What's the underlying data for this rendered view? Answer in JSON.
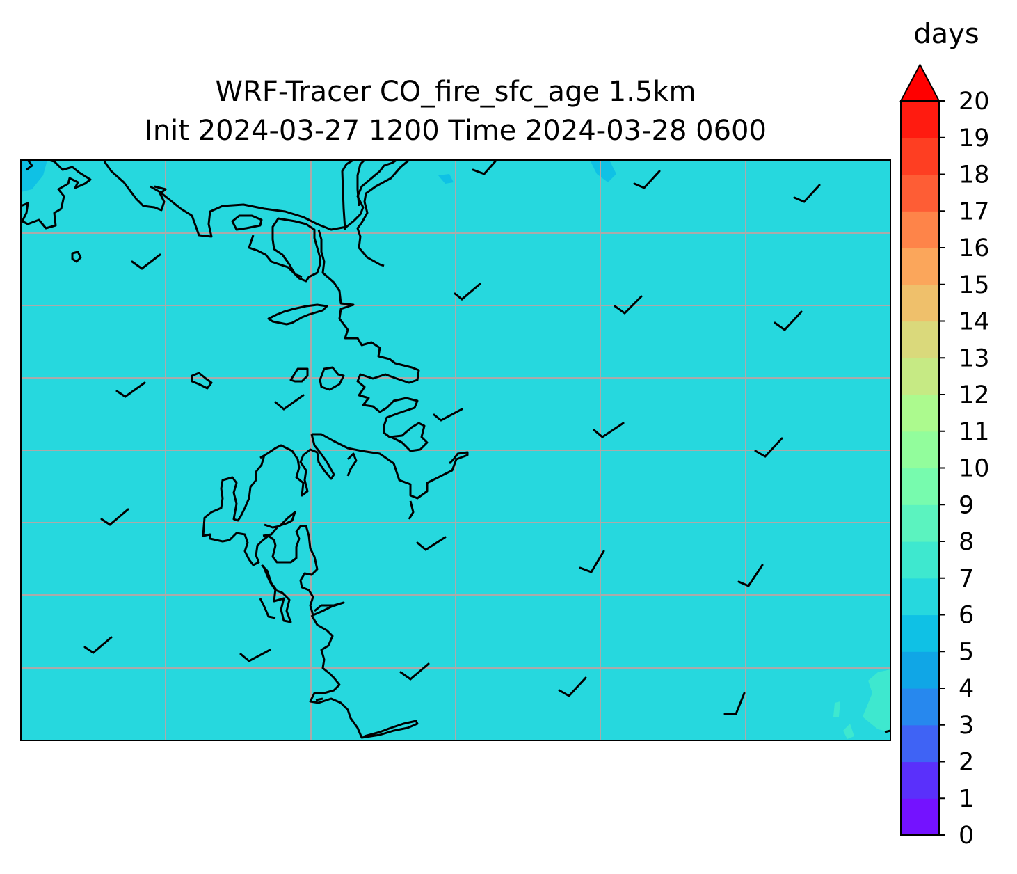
{
  "title": {
    "line1": "WRF-Tracer CO_fire_sfc_age 1.5km",
    "line2": "Init 2024-03-27 1200 Time 2024-03-28 0600"
  },
  "colorbar": {
    "unit": "days",
    "min": 0,
    "max": 20,
    "extend": "max",
    "ticks": [
      "0",
      "1",
      "2",
      "3",
      "4",
      "5",
      "6",
      "7",
      "8",
      "9",
      "10",
      "11",
      "12",
      "13",
      "14",
      "15",
      "16",
      "17",
      "18",
      "19",
      "20"
    ],
    "colors": [
      "#7412ff",
      "#5a30fb",
      "#3f63f5",
      "#2788ee",
      "#10a6e6",
      "#0fc1e5",
      "#26d8de",
      "#3ee8cf",
      "#5bf3bf",
      "#77fbae",
      "#92fd9c",
      "#acfa8e",
      "#c6ea84",
      "#dad97b",
      "#efc06b",
      "#fba65b",
      "#fe8449",
      "#fe5d35",
      "#fe3e22",
      "#ff1b10",
      "#ff0000"
    ]
  },
  "map": {
    "field_color": "#26d8de",
    "gridlines": "on",
    "coastline_color": "#000000",
    "wind_barbs": "on"
  }
}
